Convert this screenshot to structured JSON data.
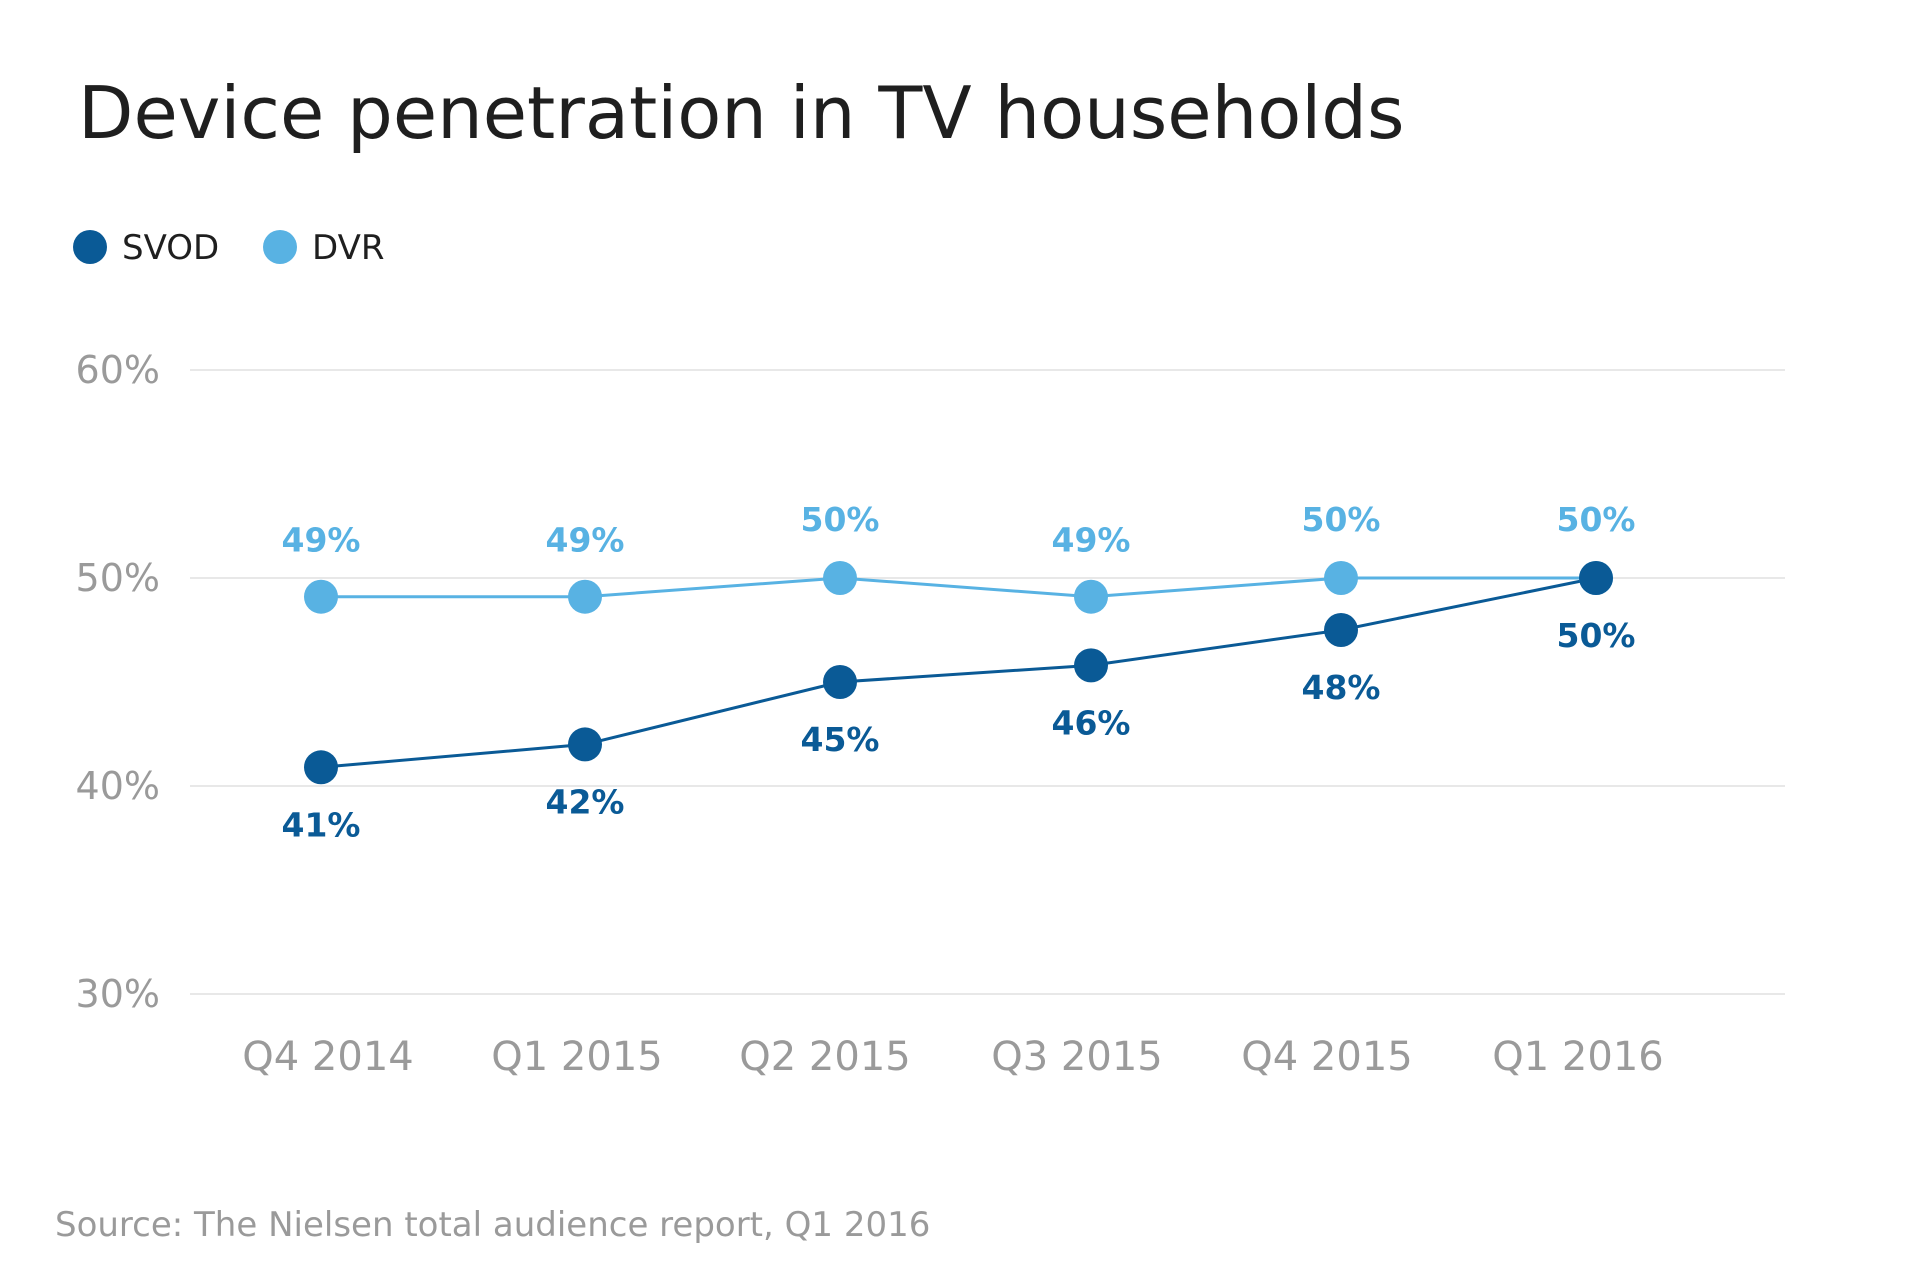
{
  "chart_data": {
    "type": "line",
    "title": "Device penetration in TV households",
    "source": "Source: The Nielsen total audience report, Q1 2016",
    "categories": [
      "Q4 2014",
      "Q1 2015",
      "Q2 2015",
      "Q3 2015",
      "Q4 2015",
      "Q1 2016"
    ],
    "ylim": [
      30,
      60
    ],
    "yticks": [
      30,
      40,
      50,
      60
    ],
    "ytick_labels": [
      "30%",
      "40%",
      "50%",
      "60%"
    ],
    "grid": true,
    "legend": "top-left",
    "series": [
      {
        "name": "SVOD",
        "color": "#0a5a96",
        "values": [
          40.9,
          42.0,
          45.0,
          45.8,
          47.5,
          50.0
        ],
        "labels": [
          "41%",
          "42%",
          "45%",
          "46%",
          "48%",
          "50%"
        ],
        "label_position": "below"
      },
      {
        "name": "DVR",
        "color": "#58b2e3",
        "values": [
          49.1,
          49.1,
          50.0,
          49.1,
          50.0,
          50.0
        ],
        "labels": [
          "49%",
          "49%",
          "50%",
          "49%",
          "50%",
          "50%"
        ],
        "label_position": "above"
      }
    ]
  }
}
